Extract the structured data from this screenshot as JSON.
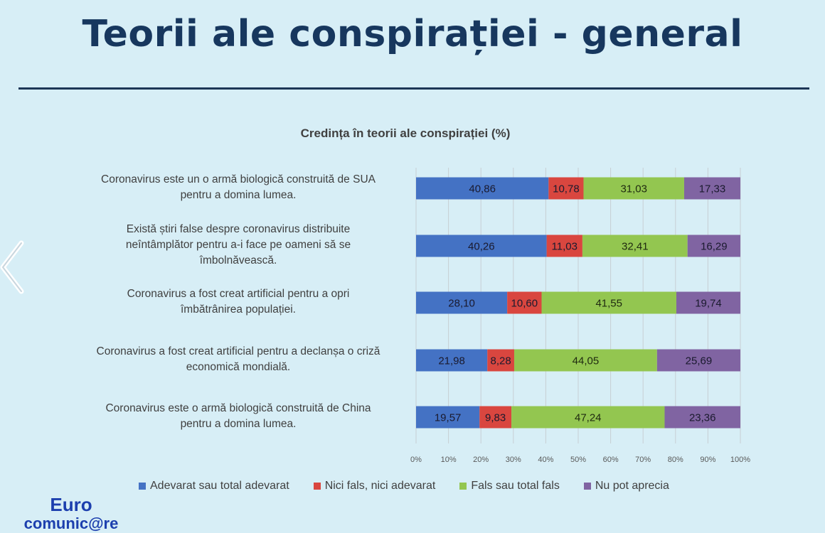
{
  "slide": {
    "title": "Teorii ale conspirației - general"
  },
  "logo": {
    "line1": "Euro",
    "line2": "comunic@re"
  },
  "chart_data": {
    "type": "bar",
    "orientation": "horizontal",
    "stacked": "percent",
    "title": "Credința în teorii ale conspirației (%)",
    "categories": [
      [
        "Coronavirus este un o armă biologică construită de SUA",
        "pentru a domina lumea."
      ],
      [
        "Există știri false despre coronavirus distribuite",
        "neîntâmplător pentru a-i face pe oameni să se",
        "îmbolnăvească."
      ],
      [
        "Coronavirus a fost creat artificial pentru a opri",
        "îmbătrânirea populației."
      ],
      [
        "Coronavirus a fost creat artificial pentru a declanșa o criză",
        "economică mondială."
      ],
      [
        "Coronavirus este o armă biologică construită de China",
        "pentru a domina lumea."
      ]
    ],
    "series": [
      {
        "name": "Adevarat sau total adevarat",
        "color": "#4472c4",
        "values": [
          40.86,
          40.26,
          28.1,
          21.98,
          19.57
        ],
        "labels": [
          "40,86",
          "40,26",
          "28,10",
          "21,98",
          "19,57"
        ]
      },
      {
        "name": "Nici fals, nici adevarat",
        "color": "#d9463f",
        "values": [
          10.78,
          11.03,
          10.6,
          8.28,
          9.83
        ],
        "labels": [
          "10,78",
          "11,03",
          "10,60",
          "8,28",
          "9,83"
        ]
      },
      {
        "name": "Fals sau total fals",
        "color": "#93c650",
        "values": [
          31.03,
          32.41,
          41.55,
          44.05,
          47.24
        ],
        "labels": [
          "31,03",
          "32,41",
          "41,55",
          "44,05",
          "47,24"
        ]
      },
      {
        "name": "Nu pot aprecia",
        "color": "#8064a2",
        "values": [
          17.33,
          16.29,
          19.74,
          25.69,
          23.36
        ],
        "labels": [
          "17,33",
          "16,29",
          "19,74",
          "25,69",
          "23,36"
        ]
      }
    ],
    "xlim": [
      0,
      100
    ],
    "xticks": [
      "0%",
      "10%",
      "20%",
      "30%",
      "40%",
      "50%",
      "60%",
      "70%",
      "80%",
      "90%",
      "100%"
    ],
    "grid": true,
    "legend_position": "bottom"
  }
}
